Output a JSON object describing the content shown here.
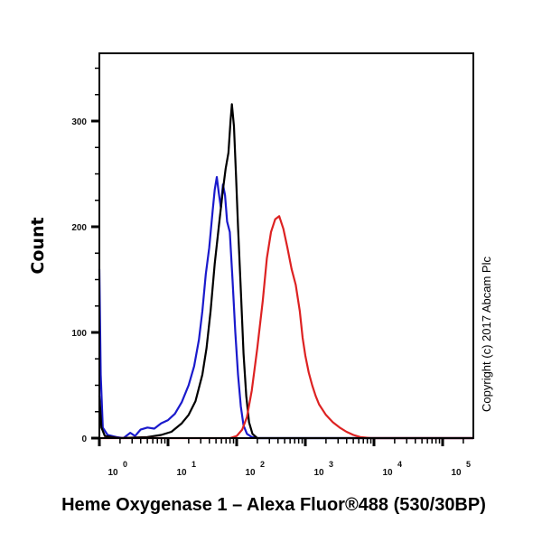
{
  "chart_data": {
    "type": "line",
    "title": "Heme Oxygenase 1 – Alexa Fluor®488 (530/30BP)",
    "xlabel": "Heme Oxygenase 1 – Alexa Fluor®488 (530/30BP)",
    "ylabel": "Count",
    "x_scale": "log10",
    "xlim_log10": [
      0,
      5.45
    ],
    "ylim": [
      0,
      364
    ],
    "x_ticks": [
      {
        "base": "10",
        "exp": "0",
        "log": 0
      },
      {
        "base": "10",
        "exp": "1",
        "log": 1
      },
      {
        "base": "10",
        "exp": "2",
        "log": 2
      },
      {
        "base": "10",
        "exp": "3",
        "log": 3
      },
      {
        "base": "10",
        "exp": "4",
        "log": 4
      },
      {
        "base": "10",
        "exp": "5",
        "log": 5
      }
    ],
    "y_ticks": [
      0,
      100,
      200,
      300
    ],
    "y_minor_step": 25,
    "grid": false,
    "legend": null,
    "annotation": "Copyright (c) 2017 Abcam Plc",
    "series": [
      {
        "name": "blue",
        "color": "#1a1acc",
        "points_log10": [
          [
            0.0,
            160
          ],
          [
            0.02,
            60
          ],
          [
            0.05,
            10
          ],
          [
            0.12,
            3
          ],
          [
            0.25,
            1
          ],
          [
            0.35,
            0
          ],
          [
            0.45,
            5
          ],
          [
            0.52,
            2
          ],
          [
            0.6,
            8
          ],
          [
            0.7,
            10
          ],
          [
            0.8,
            9
          ],
          [
            0.9,
            14
          ],
          [
            1.0,
            17
          ],
          [
            1.1,
            23
          ],
          [
            1.2,
            34
          ],
          [
            1.3,
            50
          ],
          [
            1.38,
            68
          ],
          [
            1.45,
            93
          ],
          [
            1.5,
            120
          ],
          [
            1.55,
            155
          ],
          [
            1.6,
            180
          ],
          [
            1.65,
            215
          ],
          [
            1.68,
            235
          ],
          [
            1.71,
            247
          ],
          [
            1.74,
            232
          ],
          [
            1.77,
            218
          ],
          [
            1.8,
            240
          ],
          [
            1.83,
            230
          ],
          [
            1.86,
            205
          ],
          [
            1.9,
            195
          ],
          [
            1.94,
            150
          ],
          [
            1.98,
            100
          ],
          [
            2.02,
            60
          ],
          [
            2.06,
            30
          ],
          [
            2.1,
            12
          ],
          [
            2.15,
            4
          ],
          [
            2.22,
            1
          ],
          [
            2.3,
            0
          ],
          [
            5.45,
            0
          ]
        ]
      },
      {
        "name": "black",
        "color": "#000000",
        "points_log10": [
          [
            0.0,
            40
          ],
          [
            0.03,
            10
          ],
          [
            0.08,
            2
          ],
          [
            0.3,
            0
          ],
          [
            0.7,
            1
          ],
          [
            0.9,
            3
          ],
          [
            1.05,
            6
          ],
          [
            1.2,
            14
          ],
          [
            1.3,
            22
          ],
          [
            1.4,
            35
          ],
          [
            1.5,
            60
          ],
          [
            1.56,
            85
          ],
          [
            1.62,
            120
          ],
          [
            1.68,
            165
          ],
          [
            1.74,
            200
          ],
          [
            1.8,
            235
          ],
          [
            1.84,
            255
          ],
          [
            1.88,
            270
          ],
          [
            1.91,
            300
          ],
          [
            1.93,
            316
          ],
          [
            1.96,
            295
          ],
          [
            1.99,
            250
          ],
          [
            2.02,
            200
          ],
          [
            2.06,
            140
          ],
          [
            2.1,
            80
          ],
          [
            2.14,
            40
          ],
          [
            2.18,
            15
          ],
          [
            2.23,
            4
          ],
          [
            2.3,
            0
          ],
          [
            5.45,
            0
          ]
        ]
      },
      {
        "name": "red",
        "color": "#dd2222",
        "points_log10": [
          [
            0.0,
            0
          ],
          [
            1.9,
            0
          ],
          [
            2.0,
            2
          ],
          [
            2.08,
            8
          ],
          [
            2.15,
            20
          ],
          [
            2.22,
            45
          ],
          [
            2.3,
            85
          ],
          [
            2.38,
            130
          ],
          [
            2.44,
            170
          ],
          [
            2.5,
            195
          ],
          [
            2.56,
            207
          ],
          [
            2.62,
            210
          ],
          [
            2.68,
            198
          ],
          [
            2.74,
            180
          ],
          [
            2.8,
            160
          ],
          [
            2.86,
            145
          ],
          [
            2.92,
            120
          ],
          [
            2.96,
            95
          ],
          [
            3.0,
            78
          ],
          [
            3.05,
            62
          ],
          [
            3.1,
            50
          ],
          [
            3.15,
            40
          ],
          [
            3.2,
            32
          ],
          [
            3.3,
            22
          ],
          [
            3.4,
            15
          ],
          [
            3.5,
            10
          ],
          [
            3.6,
            6
          ],
          [
            3.7,
            3
          ],
          [
            3.8,
            1
          ],
          [
            3.95,
            0
          ],
          [
            5.45,
            0
          ]
        ]
      }
    ]
  },
  "chart": {
    "ylabel": "Count",
    "title": "Heme Oxygenase 1 – Alexa Fluor®488 (530/30BP)",
    "copyright": "Copyright (c) 2017 Abcam Plc"
  }
}
